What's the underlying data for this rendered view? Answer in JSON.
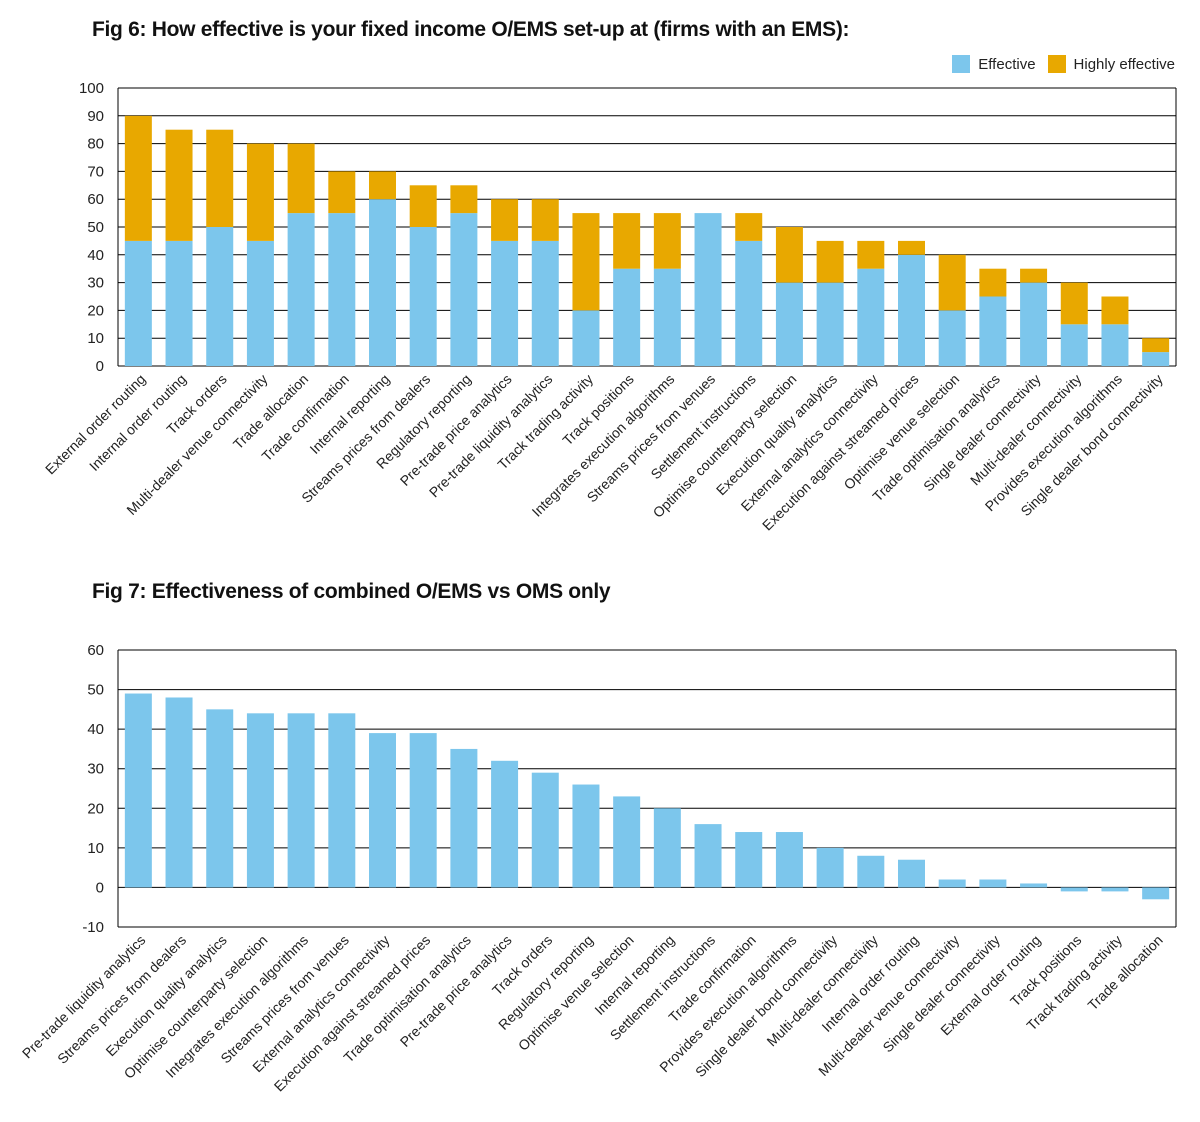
{
  "colors": {
    "effective": "#7cc6ec",
    "highly_effective": "#e8a800",
    "grid": "#000000"
  },
  "legend": {
    "effective": "Effective",
    "highly_effective": "Highly effective"
  },
  "chart_data": [
    {
      "type": "bar",
      "stacked": true,
      "title": "Fig 6: How effective is your fixed income O/EMS set-up at (firms with an EMS):",
      "xlabel": "",
      "ylabel": "",
      "ylim": [
        0,
        100
      ],
      "yticks": [
        0,
        10,
        20,
        30,
        40,
        50,
        60,
        70,
        80,
        90,
        100
      ],
      "grid": true,
      "legend_position": "top-right",
      "categories": [
        "External order routing",
        "Internal order routing",
        "Track orders",
        "Multi-dealer venue connectivity",
        "Trade allocation",
        "Trade confirmation",
        "Internal reporting",
        "Streams prices from dealers",
        "Regulatory reporting",
        "Pre-trade price analytics",
        "Pre-trade liquidity analytics",
        "Track trading activity",
        "Track positions",
        "Integrates execution algorithms",
        "Streams prices from venues",
        "Settlement instructions",
        "Optimise counterparty selection",
        "Execution quality analytics",
        "External analytics connectivity",
        "Execution against streamed prices",
        "Optimise venue selection",
        "Trade optimisation analytics",
        "Single dealer connectivity",
        "Multi-dealer connectivity",
        "Provides execution algorithms",
        "Single dealer bond connectivity"
      ],
      "series": [
        {
          "name": "Effective",
          "values": [
            45,
            45,
            50,
            45,
            55,
            55,
            60,
            50,
            55,
            45,
            45,
            20,
            35,
            35,
            55,
            45,
            30,
            30,
            35,
            40,
            20,
            25,
            30,
            15,
            15,
            5
          ]
        },
        {
          "name": "Highly effective",
          "values": [
            45,
            40,
            35,
            35,
            25,
            15,
            10,
            15,
            10,
            15,
            15,
            35,
            20,
            20,
            0,
            10,
            20,
            15,
            10,
            5,
            20,
            10,
            5,
            15,
            10,
            5
          ]
        }
      ]
    },
    {
      "type": "bar",
      "title": "Fig 7: Effectiveness of combined O/EMS vs OMS only",
      "xlabel": "",
      "ylabel": "",
      "ylim": [
        -10,
        60
      ],
      "yticks": [
        -10,
        0,
        10,
        20,
        30,
        40,
        50,
        60
      ],
      "grid": true,
      "categories": [
        "Pre-trade liquidity analytics",
        "Streams prices from dealers",
        "Execution quality analytics",
        "Optimise counterparty selection",
        "Integrates execution algorithms",
        "Streams prices from venues",
        "External analytics connectivity",
        "Execution against streamed prices",
        "Trade optimisation analytics",
        "Pre-trade price analytics",
        "Track orders",
        "Regulatory reporting",
        "Optimise venue selection",
        "Internal reporting",
        "Settlement instructions",
        "Trade confirmation",
        "Provides execution algorithms",
        "Single dealer bond connectivity",
        "Multi-dealer connectivity",
        "Internal order routing",
        "Multi-dealer venue connectivity",
        "Single dealer connectivity",
        "External order routing",
        "Track positions",
        "Track trading activity",
        "Trade allocation"
      ],
      "values": [
        49,
        48,
        45,
        44,
        44,
        44,
        39,
        39,
        35,
        32,
        29,
        26,
        23,
        20,
        16,
        14,
        14,
        10,
        8,
        7,
        2,
        2,
        1,
        -1,
        -1,
        -3
      ]
    }
  ]
}
